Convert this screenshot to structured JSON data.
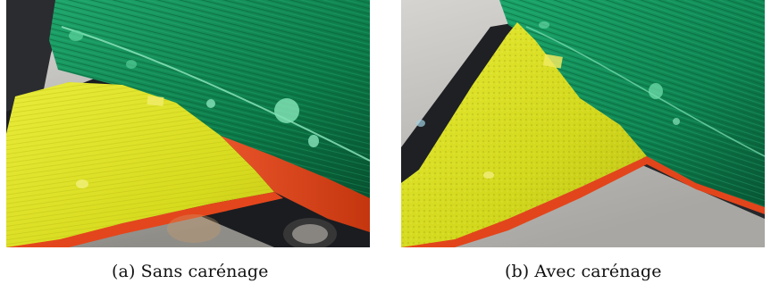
{
  "figure": {
    "panels": [
      {
        "caption": "(a) Sans carénage",
        "colors": {
          "background": "#bdbdbd",
          "fluorescent_green": "#0e8a55",
          "fluorescent_yellow": "#dfe22a",
          "red_orange": "#e0451e",
          "dark_edge": "#1b1e22"
        }
      },
      {
        "caption": "(b) Avec carénage",
        "colors": {
          "background": "#c4c2be",
          "fluorescent_green": "#10945c",
          "fluorescent_yellow": "#d8dd22",
          "red_orange": "#e04a20",
          "dark_edge": "#1d2024"
        }
      }
    ]
  }
}
